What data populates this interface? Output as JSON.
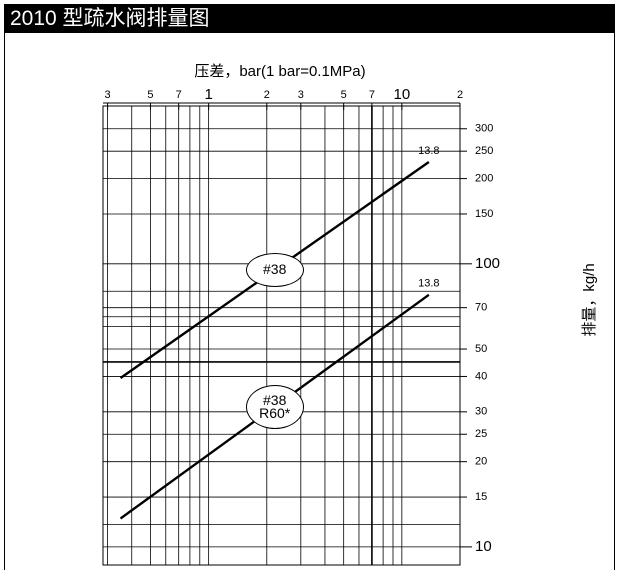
{
  "chart_data": {
    "type": "line",
    "title": "2010 型疏水阀排量图",
    "x_label": "压差，bar(1 bar=0.1MPa)",
    "y_label": "排量，kg/h",
    "log_x": true,
    "log_y": true,
    "grid": true,
    "color": "#000000",
    "xlim": [
      0.284,
      20
    ],
    "ylim": [
      8.63,
      361
    ],
    "xticks": [
      {
        "value": 0.3,
        "label": "3"
      },
      {
        "value": 0.5,
        "label": "5"
      },
      {
        "value": 0.7,
        "label": "7"
      },
      1,
      2,
      {
        "value": 3,
        "label": "3"
      },
      5,
      7,
      10,
      {
        "value": 20,
        "label": "2"
      }
    ],
    "xgrid": [
      0.3,
      0.4,
      0.5,
      0.6,
      0.7,
      0.8,
      0.9,
      1,
      2,
      3,
      4,
      5,
      6,
      7,
      8,
      9,
      10,
      20
    ],
    "yticks": [
      10,
      15,
      20,
      25,
      30,
      40,
      50,
      70,
      100,
      150,
      200,
      250,
      300
    ],
    "ygrid": [
      10,
      12,
      15,
      20,
      25,
      30,
      40,
      45,
      50,
      60,
      65,
      70,
      80,
      100,
      150,
      200,
      250,
      300
    ],
    "series": [
      {
        "name": "#38",
        "color": "#000000",
        "x": [
          0.35,
          13.8
        ],
        "values": [
          39.5,
          229
        ],
        "end_label": "13.8"
      },
      {
        "name": "#38 R60*",
        "color": "#000000",
        "x": [
          0.35,
          13.8
        ],
        "values": [
          12.6,
          77.7
        ],
        "end_label": "13.8"
      }
    ]
  }
}
